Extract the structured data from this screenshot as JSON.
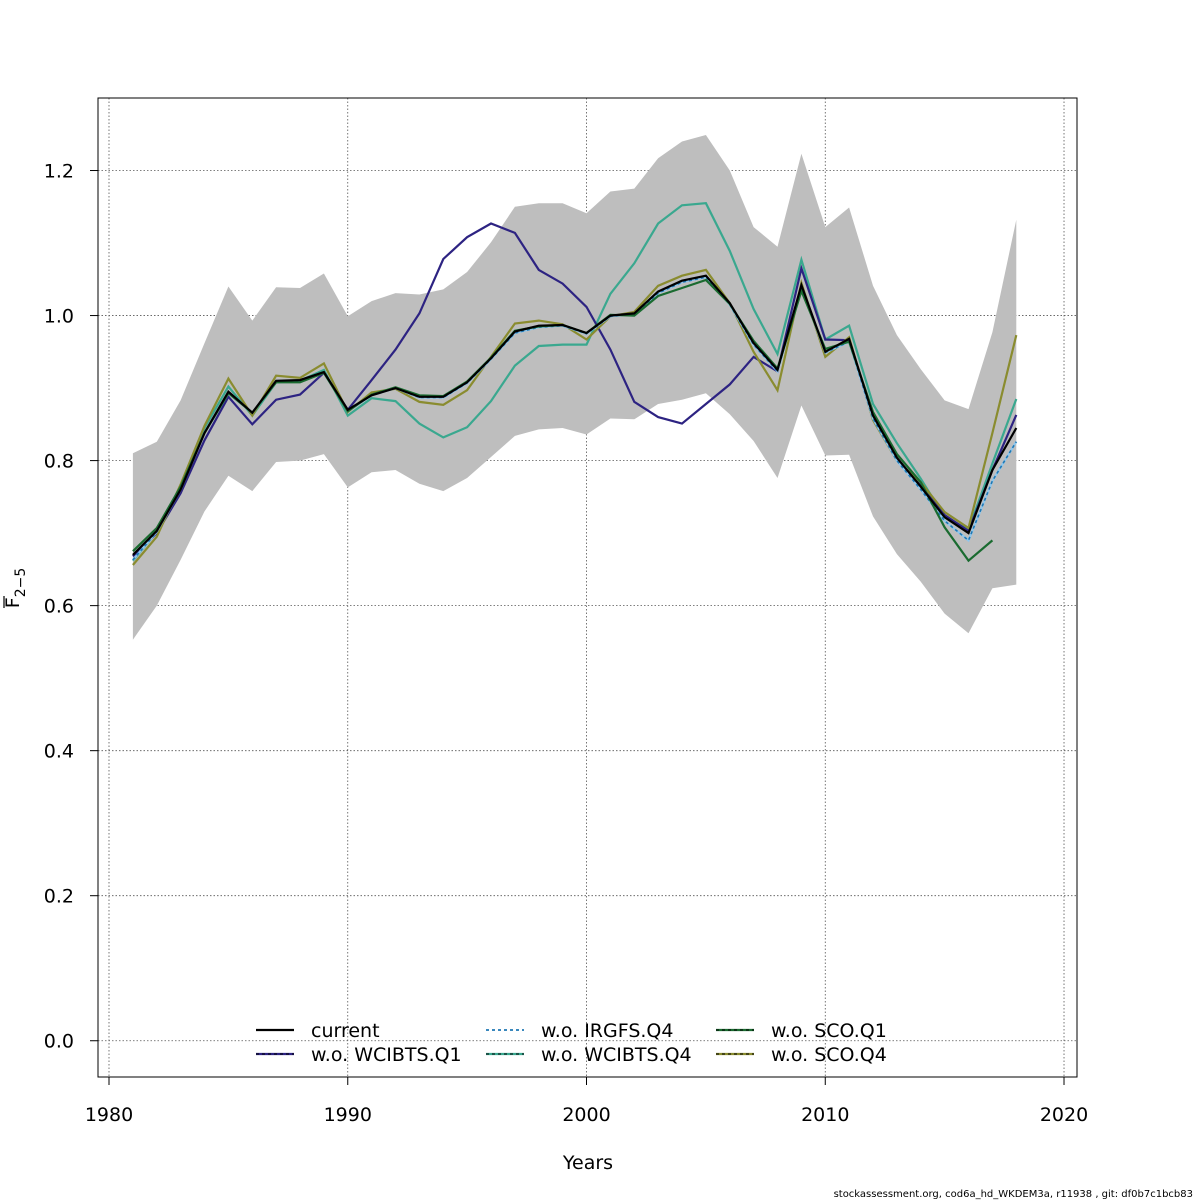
{
  "chart_data": {
    "type": "line",
    "xlabel": "Years",
    "ylabel_main": "F",
    "ylabel_sub": "2−5",
    "xlim": [
      1980,
      2020
    ],
    "ylim": [
      -0.05,
      1.3
    ],
    "xticks": [
      1980,
      1990,
      2000,
      2010,
      2020
    ],
    "yticks": [
      0.0,
      0.2,
      0.4,
      0.6,
      0.8,
      1.0,
      1.2
    ],
    "ytick_labels": [
      "0.0",
      "0.2",
      "0.4",
      "0.6",
      "0.8",
      "1.0",
      "1.2"
    ],
    "grid": true,
    "legend_placement": "bottom-center",
    "band": {
      "x": [
        1981,
        1982,
        1983,
        1984,
        1985,
        1986,
        1987,
        1988,
        1989,
        1990,
        1991,
        1992,
        1993,
        1994,
        1995,
        1996,
        1997,
        1998,
        1999,
        2000,
        2001,
        2002,
        2003,
        2004,
        2005,
        2006,
        2007,
        2008,
        2009,
        2010,
        2011,
        2012,
        2013,
        2014,
        2015,
        2016,
        2017,
        2018
      ],
      "lower": [
        0.553,
        0.6,
        0.663,
        0.73,
        0.779,
        0.758,
        0.798,
        0.8,
        0.809,
        0.763,
        0.784,
        0.787,
        0.768,
        0.758,
        0.776,
        0.805,
        0.834,
        0.843,
        0.845,
        0.836,
        0.858,
        0.857,
        0.878,
        0.884,
        0.893,
        0.864,
        0.827,
        0.776,
        0.876,
        0.807,
        0.808,
        0.723,
        0.671,
        0.633,
        0.589,
        0.562,
        0.624,
        0.629
      ],
      "upper": [
        0.81,
        0.826,
        0.883,
        0.962,
        1.04,
        0.993,
        1.039,
        1.038,
        1.058,
        0.999,
        1.02,
        1.031,
        1.029,
        1.036,
        1.06,
        1.101,
        1.15,
        1.155,
        1.155,
        1.141,
        1.171,
        1.175,
        1.217,
        1.24,
        1.249,
        1.2,
        1.122,
        1.095,
        1.223,
        1.122,
        1.149,
        1.041,
        0.973,
        0.926,
        0.883,
        0.871,
        0.977,
        1.132
      ],
      "color": "#bebebe"
    },
    "series": [
      {
        "name": "current",
        "color": "#000000",
        "dashed": false,
        "x": [
          1981,
          1982,
          1983,
          1984,
          1985,
          1986,
          1987,
          1988,
          1989,
          1990,
          1991,
          1992,
          1993,
          1994,
          1995,
          1996,
          1997,
          1998,
          1999,
          2000,
          2001,
          2002,
          2003,
          2004,
          2005,
          2006,
          2007,
          2008,
          2009,
          2010,
          2011,
          2012,
          2013,
          2014,
          2015,
          2016,
          2017,
          2018
        ],
        "y": [
          0.67,
          0.703,
          0.76,
          0.838,
          0.895,
          0.866,
          0.91,
          0.911,
          0.922,
          0.87,
          0.89,
          0.9,
          0.888,
          0.888,
          0.908,
          0.941,
          0.978,
          0.986,
          0.987,
          0.976,
          1.0,
          1.003,
          1.033,
          1.048,
          1.055,
          1.017,
          0.962,
          0.925,
          1.042,
          0.95,
          0.968,
          0.862,
          0.804,
          0.764,
          0.722,
          0.7,
          0.787,
          0.845
        ]
      },
      {
        "name": "w.o. WCIBTS.Q1",
        "color": "#2d2382",
        "dashed": false,
        "x": [
          1981,
          1982,
          1983,
          1984,
          1985,
          1986,
          1987,
          1988,
          1989,
          1990,
          1991,
          1992,
          1993,
          1994,
          1995,
          1996,
          1997,
          1998,
          1999,
          2000,
          2001,
          2002,
          2003,
          2004,
          2005,
          2006,
          2007,
          2008,
          2009,
          2010,
          2011,
          2012,
          2013,
          2014,
          2015,
          2016,
          2017,
          2018
        ],
        "y": [
          0.668,
          0.7,
          0.755,
          0.828,
          0.888,
          0.85,
          0.884,
          0.891,
          0.921,
          0.87,
          0.911,
          0.953,
          1.003,
          1.078,
          1.108,
          1.127,
          1.114,
          1.063,
          1.044,
          1.012,
          0.953,
          0.881,
          0.86,
          0.851,
          0.878,
          0.905,
          0.943,
          0.923,
          1.065,
          0.967,
          0.966,
          0.858,
          0.803,
          0.765,
          0.725,
          0.703,
          0.787,
          0.863
        ]
      },
      {
        "name": "w.o. IRGFS.Q4",
        "color": "#1f78b4",
        "dashed": true,
        "x": [
          1981,
          1982,
          1983,
          1984,
          1985,
          1986,
          1987,
          1988,
          1989,
          1990,
          1991,
          1992,
          1993,
          1994,
          1995,
          1996,
          1997,
          1998,
          1999,
          2000,
          2001,
          2002,
          2003,
          2004,
          2005,
          2006,
          2007,
          2008,
          2009,
          2010,
          2011,
          2012,
          2013,
          2014,
          2015,
          2016,
          2017,
          2018
        ],
        "y": [
          0.663,
          0.702,
          0.76,
          0.838,
          0.893,
          0.866,
          0.908,
          0.909,
          0.921,
          0.868,
          0.89,
          0.9,
          0.887,
          0.887,
          0.907,
          0.94,
          0.976,
          0.984,
          0.986,
          0.975,
          0.999,
          1.002,
          1.031,
          1.046,
          1.053,
          1.015,
          0.96,
          0.923,
          1.04,
          0.949,
          0.964,
          0.858,
          0.8,
          0.76,
          0.717,
          0.69,
          0.772,
          0.826
        ]
      },
      {
        "name": "w.o. WCIBTS.Q4",
        "color": "#3aa88f",
        "dashed": false,
        "x": [
          1981,
          1982,
          1983,
          1984,
          1985,
          1986,
          1987,
          1988,
          1989,
          1990,
          1991,
          1992,
          1993,
          1994,
          1995,
          1996,
          1997,
          1998,
          1999,
          2000,
          2001,
          2002,
          2003,
          2004,
          2005,
          2006,
          2007,
          2008,
          2009,
          2010,
          2011,
          2012,
          2013,
          2014,
          2015,
          2016,
          2017,
          2018
        ],
        "y": [
          0.662,
          0.702,
          0.763,
          0.845,
          0.902,
          0.862,
          0.908,
          0.91,
          0.925,
          0.862,
          0.886,
          0.882,
          0.851,
          0.832,
          0.846,
          0.882,
          0.931,
          0.958,
          0.96,
          0.96,
          1.03,
          1.072,
          1.127,
          1.152,
          1.155,
          1.089,
          1.009,
          0.947,
          1.077,
          0.967,
          0.986,
          0.878,
          0.824,
          0.775,
          0.722,
          0.705,
          0.796,
          0.885
        ]
      },
      {
        "name": "w.o. SCO.Q1",
        "color": "#1a6b30",
        "dashed": false,
        "x": [
          1981,
          1982,
          1983,
          1984,
          1985,
          1986,
          1987,
          1988,
          1989,
          1990,
          1991,
          1992,
          1993,
          1994,
          1995,
          1996,
          1997,
          1998,
          1999,
          2000,
          2001,
          2002,
          2003,
          2004,
          2005,
          2006,
          2007,
          2008,
          2009,
          2010,
          2011,
          2012,
          2013,
          2014,
          2015,
          2016,
          2017
        ],
        "y": [
          0.675,
          0.707,
          0.764,
          0.838,
          0.893,
          0.866,
          0.908,
          0.908,
          0.921,
          0.868,
          0.891,
          0.901,
          0.89,
          0.889,
          0.909,
          0.942,
          0.979,
          0.985,
          0.987,
          0.976,
          1.001,
          1.0,
          1.027,
          1.038,
          1.049,
          1.016,
          0.965,
          0.927,
          1.034,
          0.954,
          0.964,
          0.867,
          0.809,
          0.77,
          0.708,
          0.662,
          0.69
        ]
      },
      {
        "name": "w.o. SCO.Q4",
        "color": "#8a8c2f",
        "dashed": false,
        "x": [
          1981,
          1982,
          1983,
          1984,
          1985,
          1986,
          1987,
          1988,
          1989,
          1990,
          1991,
          1992,
          1993,
          1994,
          1995,
          1996,
          1997,
          1998,
          1999,
          2000,
          2001,
          2002,
          2003,
          2004,
          2005,
          2006,
          2007,
          2008,
          2009,
          2010,
          2011,
          2012,
          2013,
          2014,
          2015,
          2016,
          2017,
          2018
        ],
        "y": [
          0.656,
          0.695,
          0.767,
          0.848,
          0.913,
          0.862,
          0.917,
          0.914,
          0.934,
          0.867,
          0.894,
          0.899,
          0.881,
          0.877,
          0.897,
          0.943,
          0.989,
          0.993,
          0.988,
          0.967,
          0.999,
          1.005,
          1.041,
          1.055,
          1.063,
          1.017,
          0.95,
          0.897,
          1.045,
          0.943,
          0.97,
          0.856,
          0.8,
          0.77,
          0.729,
          0.707,
          0.838,
          0.973
        ]
      }
    ],
    "legend_columns": [
      [
        "current",
        "w.o. WCIBTS.Q1"
      ],
      [
        "w.o. IRGFS.Q4",
        "w.o. WCIBTS.Q4"
      ],
      [
        "w.o. SCO.Q1",
        "w.o. SCO.Q4"
      ]
    ]
  },
  "footer": "stockassessment.org, cod6a_hd_WKDEM3a, r11938 , git: df0b7c1bcb83"
}
